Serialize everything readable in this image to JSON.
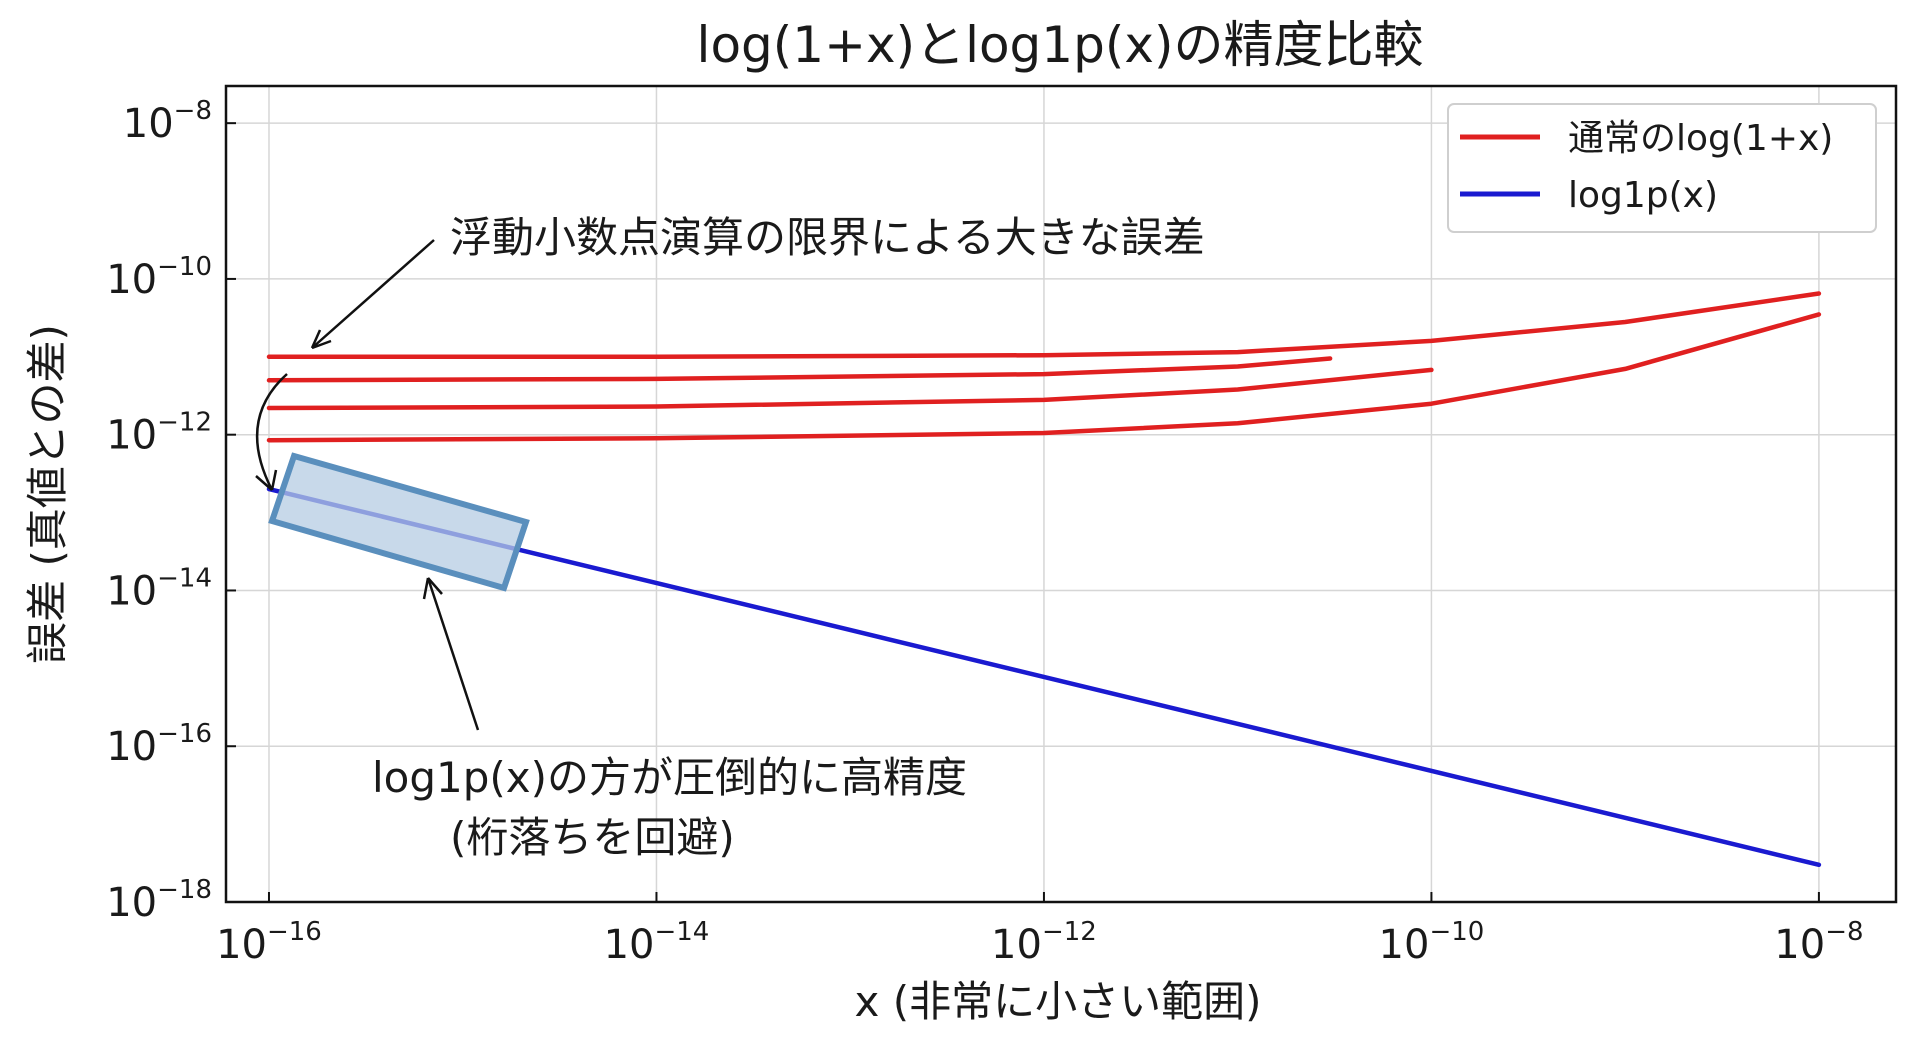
{
  "chart_data": {
    "type": "line",
    "title": "log(1+x)とlog1p(x)の精度比較",
    "xlabel": "x (非常に小さい範囲)",
    "ylabel": "誤差 (真値との差)",
    "xscale": "log",
    "yscale": "log",
    "xlim": [
      6e-17,
      2.5e-08
    ],
    "ylim": [
      1e-18,
      3e-08
    ],
    "xticks": [
      {
        "value": 1e-16,
        "base": "10",
        "exp": "−16"
      },
      {
        "value": 1e-14,
        "base": "10",
        "exp": "−14"
      },
      {
        "value": 1e-12,
        "base": "10",
        "exp": "−12"
      },
      {
        "value": 1e-10,
        "base": "10",
        "exp": "−10"
      },
      {
        "value": 1e-08,
        "base": "10",
        "exp": "−8"
      }
    ],
    "yticks": [
      {
        "value": 1e-08,
        "base": "10",
        "exp": "−8"
      },
      {
        "value": 1e-10,
        "base": "10",
        "exp": "−10"
      },
      {
        "value": 1e-12,
        "base": "10",
        "exp": "−12"
      },
      {
        "value": 1e-14,
        "base": "10",
        "exp": "−14"
      },
      {
        "value": 1e-16,
        "base": "10",
        "exp": "−16"
      },
      {
        "value": 1e-18,
        "base": "10",
        "exp": "−18"
      }
    ],
    "grid": true,
    "legend": {
      "placement": "top-right",
      "entries": [
        {
          "label": "通常のlog(1+x)",
          "color": "#e02020"
        },
        {
          "label": "log1p(x)",
          "color": "#1a1ad0"
        }
      ]
    },
    "series": [
      {
        "name": "通常のlog(1+x)",
        "color": "#e02020",
        "points": [
          [
            1e-16,
            1e-11
          ],
          [
            1e-14,
            1e-11
          ],
          [
            1e-12,
            1.05e-11
          ],
          [
            1e-11,
            1.15e-11
          ],
          [
            1e-10,
            1.6e-11
          ],
          [
            1e-09,
            2.8e-11
          ],
          [
            1e-08,
            6.5e-11
          ]
        ]
      },
      {
        "name": "通常のlog(1+x)",
        "color": "#e02020",
        "points": [
          [
            1e-16,
            5e-12
          ],
          [
            1e-14,
            5.2e-12
          ],
          [
            1e-12,
            6e-12
          ],
          [
            1e-11,
            7.5e-12
          ],
          [
            3e-11,
            9.5e-12
          ]
        ]
      },
      {
        "name": "通常のlog(1+x)",
        "color": "#e02020",
        "points": [
          [
            1e-16,
            2.2e-12
          ],
          [
            1e-14,
            2.3e-12
          ],
          [
            1e-12,
            2.8e-12
          ],
          [
            1e-11,
            3.8e-12
          ],
          [
            1e-10,
            6.8e-12
          ]
        ]
      },
      {
        "name": "通常のlog(1+x)",
        "color": "#e02020",
        "points": [
          [
            1e-16,
            8.5e-13
          ],
          [
            1e-14,
            9e-13
          ],
          [
            1e-12,
            1.05e-12
          ],
          [
            1e-11,
            1.4e-12
          ],
          [
            1e-10,
            2.5e-12
          ],
          [
            1e-09,
            7e-12
          ],
          [
            1e-08,
            3.5e-11
          ]
        ]
      },
      {
        "name": "log1p(x)",
        "color": "#1a1ad0",
        "points": [
          [
            1e-16,
            2e-13
          ],
          [
            1e-08,
            3e-18
          ]
        ]
      }
    ],
    "annotations": [
      {
        "text": "浮動小数点演算の限界による大きな誤差"
      },
      {
        "text": "log1p(x)の方が圧倒的に高精度"
      },
      {
        "text": "(桁落ちを回避)"
      }
    ]
  }
}
